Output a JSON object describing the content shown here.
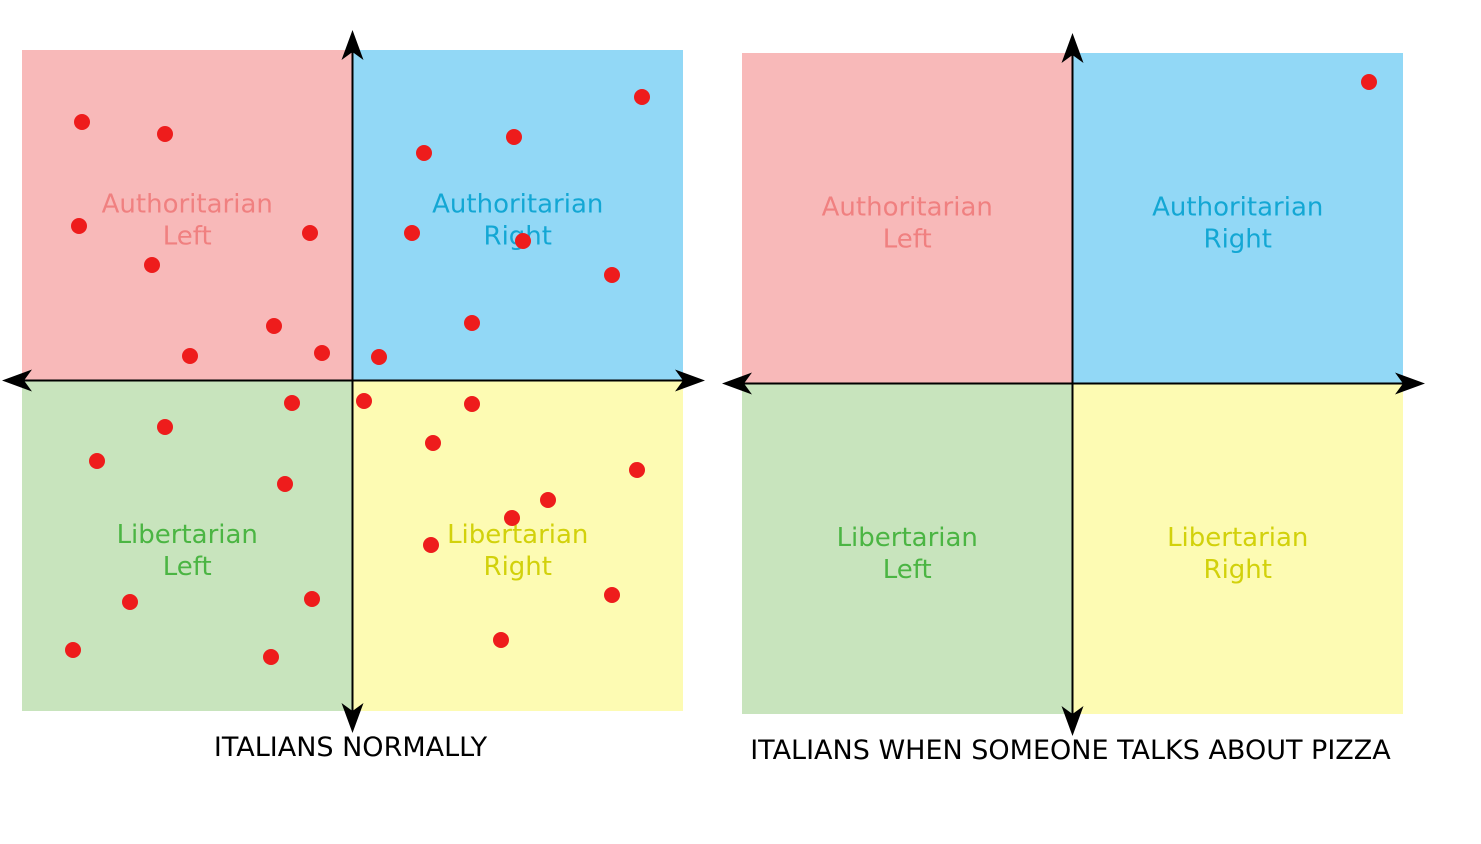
{
  "panels": [
    {
      "caption": "ITALIANS NORMALLY",
      "quadrants": {
        "auth_left": [
          "Authoritarian",
          "Left"
        ],
        "auth_right": [
          "Authoritarian",
          "Right"
        ],
        "lib_left": [
          "Libertarian",
          "Left"
        ],
        "lib_right": [
          "Libertarian",
          "Right"
        ]
      }
    },
    {
      "caption": "ITALIANS WHEN SOMEONE TALKS ABOUT PIZZA",
      "quadrants": {
        "auth_left": [
          "Authoritarian",
          "Left"
        ],
        "auth_right": [
          "Authoritarian",
          "Right"
        ],
        "lib_left": [
          "Libertarian",
          "Left"
        ],
        "lib_right": [
          "Libertarian",
          "Right"
        ]
      }
    }
  ]
}
